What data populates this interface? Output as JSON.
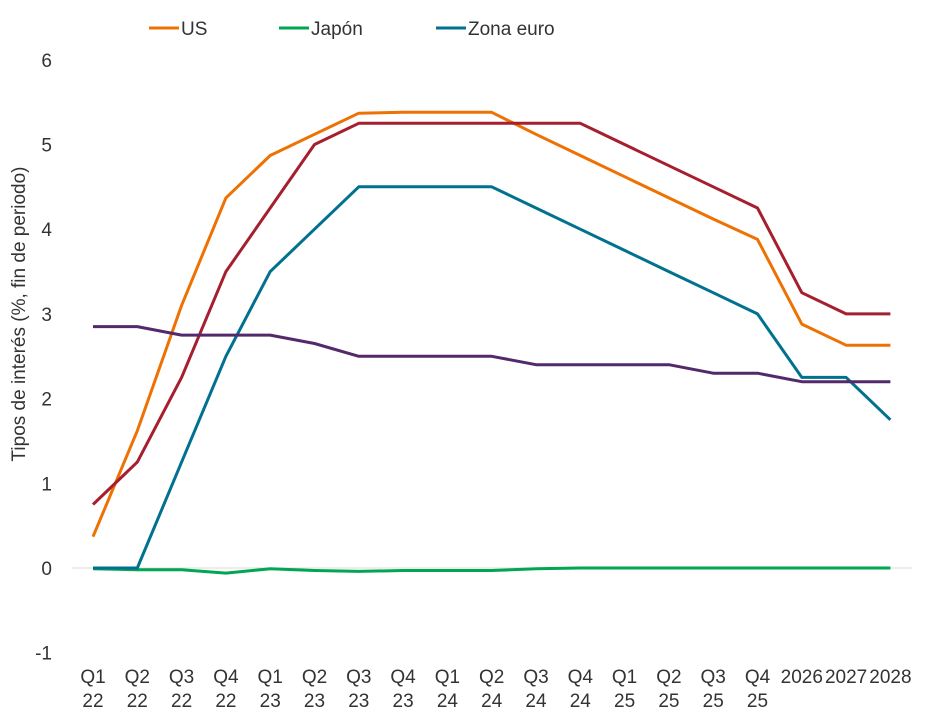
{
  "chart_data": {
    "type": "line",
    "title": "",
    "xlabel": "",
    "ylabel": "Tipos de interés (%, fin de periodo)",
    "ylim": [
      -1,
      6
    ],
    "yticks": [
      -1,
      0,
      1,
      2,
      3,
      4,
      5,
      6
    ],
    "grid": false,
    "legend_position": "top",
    "categories": [
      [
        "Q1",
        "22"
      ],
      [
        "Q2",
        "22"
      ],
      [
        "Q3",
        "22"
      ],
      [
        "Q4",
        "22"
      ],
      [
        "Q1",
        "23"
      ],
      [
        "Q2",
        "23"
      ],
      [
        "Q3",
        "23"
      ],
      [
        "Q4",
        "23"
      ],
      [
        "Q1",
        "24"
      ],
      [
        "Q2",
        "24"
      ],
      [
        "Q3",
        "24"
      ],
      [
        "Q4",
        "24"
      ],
      [
        "Q1",
        "25"
      ],
      [
        "Q2",
        "25"
      ],
      [
        "Q3",
        "25"
      ],
      [
        "Q4",
        "25"
      ],
      [
        "2026",
        ""
      ],
      [
        "2027",
        ""
      ],
      [
        "2028",
        ""
      ]
    ],
    "series": [
      {
        "name": "US",
        "legend": true,
        "color": "#EE7203",
        "values": [
          0.37,
          1.62,
          3.1,
          4.37,
          4.87,
          5.12,
          5.37,
          5.38,
          5.38,
          5.38,
          5.12,
          4.87,
          4.62,
          4.37,
          4.12,
          3.88,
          2.88,
          2.63,
          2.63
        ]
      },
      {
        "name": "Japón",
        "legend": true,
        "color": "#00A651",
        "values": [
          -0.01,
          -0.02,
          -0.02,
          -0.06,
          -0.01,
          -0.03,
          -0.04,
          -0.03,
          -0.03,
          -0.03,
          -0.01,
          0,
          0,
          0,
          0,
          0,
          0,
          0,
          0
        ]
      },
      {
        "name": "Zona euro",
        "legend": true,
        "color": "#00718F",
        "values": [
          0,
          0,
          1.25,
          2.5,
          3.5,
          4.0,
          4.5,
          4.5,
          4.5,
          4.5,
          4.25,
          4.0,
          3.75,
          3.5,
          3.25,
          3.0,
          2.25,
          2.25,
          1.75
        ]
      },
      {
        "name": "",
        "legend": false,
        "color": "#A51F2F",
        "values": [
          0.75,
          1.25,
          2.25,
          3.5,
          4.25,
          5.0,
          5.25,
          5.25,
          5.25,
          5.25,
          5.25,
          5.25,
          5.0,
          4.75,
          4.5,
          4.25,
          3.25,
          3.0,
          3.0
        ]
      },
      {
        "name": "",
        "legend": false,
        "color": "#53296B",
        "values": [
          2.85,
          2.85,
          2.75,
          2.75,
          2.75,
          2.65,
          2.5,
          2.5,
          2.5,
          2.5,
          2.4,
          2.4,
          2.4,
          2.4,
          2.3,
          2.3,
          2.2,
          2.2,
          2.2
        ]
      }
    ]
  }
}
